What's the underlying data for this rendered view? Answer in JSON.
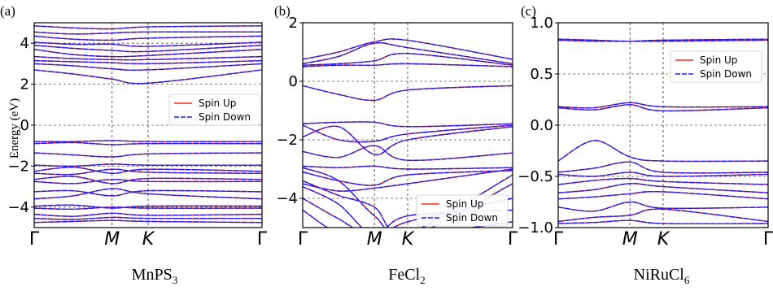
{
  "ylabel": "Energy (eV)",
  "legend_up": "Spin Up",
  "legend_down": "Spin Down",
  "colors": {
    "up": "#ff2a1a",
    "down": "#1a1aff",
    "grid": "#555555"
  },
  "chart_data": [
    {
      "type": "line",
      "panel_label": "(a)",
      "material": "MnPS",
      "material_sub": "3",
      "x_ticks": [
        "Γ",
        "M",
        "K",
        "Γ"
      ],
      "ylim": [
        -5,
        5
      ],
      "y_ticks": [
        -4,
        -2,
        0,
        2,
        4
      ],
      "hgrid": [
        -4,
        -2,
        0,
        2,
        4
      ],
      "legend_position": "center-right",
      "grid": true,
      "bands": [
        [
          [
            0,
            -4.75
          ],
          [
            0.5,
            -4.7
          ],
          [
            1,
            -4.65
          ],
          [
            1.5,
            -4.7
          ],
          [
            2,
            -4.75
          ]
        ],
        [
          [
            0,
            -4.55
          ],
          [
            0.5,
            -4.6
          ],
          [
            1,
            -4.5
          ],
          [
            1.5,
            -4.55
          ],
          [
            2,
            -4.55
          ]
        ],
        [
          [
            0,
            -4.35
          ],
          [
            0.5,
            -4.45
          ],
          [
            1,
            -4.3
          ],
          [
            1.5,
            -4.4
          ],
          [
            2,
            -4.35
          ]
        ],
        [
          [
            0,
            -4.05
          ],
          [
            0.5,
            -4.1
          ],
          [
            1,
            -4.0
          ],
          [
            1.5,
            -4.05
          ],
          [
            2,
            -4.05
          ]
        ],
        [
          [
            0,
            -3.95
          ],
          [
            0.5,
            -3.9
          ],
          [
            1,
            -4.05
          ],
          [
            1.5,
            -3.95
          ],
          [
            2,
            -3.95
          ]
        ],
        [
          [
            0,
            -3.6
          ],
          [
            0.5,
            -3.45
          ],
          [
            1,
            -3.1
          ],
          [
            1.5,
            -3.35
          ],
          [
            2,
            -3.6
          ]
        ],
        [
          [
            0,
            -3.25
          ],
          [
            0.5,
            -3.2
          ],
          [
            1,
            -3.45
          ],
          [
            1.5,
            -3.2
          ],
          [
            2,
            -3.25
          ]
        ],
        [
          [
            0,
            -2.75
          ],
          [
            0.5,
            -2.85
          ],
          [
            1,
            -2.65
          ],
          [
            1.5,
            -2.75
          ],
          [
            2,
            -2.75
          ]
        ],
        [
          [
            0,
            -2.65
          ],
          [
            0.5,
            -2.5
          ],
          [
            1,
            -2.85
          ],
          [
            1.5,
            -2.6
          ],
          [
            2,
            -2.65
          ]
        ],
        [
          [
            0,
            -2.35
          ],
          [
            0.5,
            -2.4
          ],
          [
            1,
            -2.15
          ],
          [
            1.5,
            -2.3
          ],
          [
            2,
            -2.35
          ]
        ],
        [
          [
            0,
            -2.25
          ],
          [
            0.5,
            -2.05
          ],
          [
            1,
            -2.35
          ],
          [
            1.5,
            -2.15
          ],
          [
            2,
            -2.25
          ]
        ],
        [
          [
            0,
            -1.95
          ],
          [
            0.5,
            -2.0
          ],
          [
            1,
            -1.9
          ],
          [
            1.5,
            -1.95
          ],
          [
            2,
            -1.95
          ]
        ],
        [
          [
            0,
            -1.35
          ],
          [
            0.5,
            -1.45
          ],
          [
            1,
            -1.55
          ],
          [
            1.5,
            -1.4
          ],
          [
            2,
            -1.35
          ]
        ],
        [
          [
            0,
            -0.9
          ],
          [
            0.5,
            -0.85
          ],
          [
            1,
            -0.95
          ],
          [
            1.5,
            -0.9
          ],
          [
            2,
            -0.9
          ]
        ],
        [
          [
            0,
            -0.8
          ],
          [
            0.5,
            -0.8
          ],
          [
            1,
            -0.75
          ],
          [
            1.5,
            -0.8
          ],
          [
            2,
            -0.8
          ]
        ],
        [
          [
            0,
            2.7
          ],
          [
            0.5,
            2.5
          ],
          [
            1,
            2.25
          ],
          [
            1.5,
            2.05
          ],
          [
            2,
            2.7
          ]
        ],
        [
          [
            0,
            3.0
          ],
          [
            0.5,
            2.9
          ],
          [
            1,
            2.75
          ],
          [
            1.5,
            2.7
          ],
          [
            2,
            3.0
          ]
        ],
        [
          [
            0,
            3.15
          ],
          [
            0.5,
            3.1
          ],
          [
            1,
            3.05
          ],
          [
            1.5,
            3.0
          ],
          [
            2,
            3.15
          ]
        ],
        [
          [
            0,
            3.35
          ],
          [
            0.5,
            3.25
          ],
          [
            1,
            3.2
          ],
          [
            1.5,
            3.2
          ],
          [
            2,
            3.35
          ]
        ],
        [
          [
            0,
            3.7
          ],
          [
            0.5,
            3.45
          ],
          [
            1,
            3.35
          ],
          [
            1.5,
            3.4
          ],
          [
            2,
            3.7
          ]
        ],
        [
          [
            0,
            3.9
          ],
          [
            0.5,
            3.75
          ],
          [
            1,
            3.65
          ],
          [
            1.5,
            3.6
          ],
          [
            2,
            3.9
          ]
        ],
        [
          [
            0,
            4.05
          ],
          [
            0.5,
            3.95
          ],
          [
            1,
            3.95
          ],
          [
            1.5,
            3.85
          ],
          [
            2,
            4.05
          ]
        ],
        [
          [
            0,
            4.35
          ],
          [
            0.5,
            4.2
          ],
          [
            1,
            4.15
          ],
          [
            1.5,
            4.25
          ],
          [
            2,
            4.35
          ]
        ],
        [
          [
            0,
            4.55
          ],
          [
            0.5,
            4.45
          ],
          [
            1,
            4.5
          ],
          [
            1.5,
            4.55
          ],
          [
            2,
            4.55
          ]
        ],
        [
          [
            0,
            4.85
          ],
          [
            0.5,
            4.75
          ],
          [
            1,
            4.7
          ],
          [
            1.5,
            4.8
          ],
          [
            2,
            4.85
          ]
        ]
      ]
    },
    {
      "type": "line",
      "panel_label": "(b)",
      "material": "FeCl",
      "material_sub": "2",
      "x_ticks": [
        "Γ",
        "M",
        "K",
        "Γ"
      ],
      "ylim": [
        -5,
        2
      ],
      "y_ticks": [
        -4,
        -2,
        0,
        2
      ],
      "hgrid": [
        -4,
        -2,
        0
      ],
      "legend_position": "lower-right",
      "grid": true,
      "bands": [
        [
          [
            0,
            0.75
          ],
          [
            0.5,
            1.0
          ],
          [
            1,
            1.35
          ],
          [
            1.5,
            1.4
          ],
          [
            2,
            0.75
          ]
        ],
        [
          [
            0,
            0.6
          ],
          [
            0.5,
            0.85
          ],
          [
            1,
            1.3
          ],
          [
            1.5,
            1.15
          ],
          [
            2,
            0.6
          ]
        ],
        [
          [
            0,
            0.55
          ],
          [
            0.5,
            0.6
          ],
          [
            1,
            0.7
          ],
          [
            1.5,
            0.95
          ],
          [
            2,
            0.55
          ]
        ],
        [
          [
            0,
            0.5
          ],
          [
            0.5,
            0.55
          ],
          [
            1,
            0.55
          ],
          [
            1.5,
            0.6
          ],
          [
            2,
            0.5
          ]
        ],
        [
          [
            0,
            -0.15
          ],
          [
            0.5,
            -0.45
          ],
          [
            1,
            -0.65
          ],
          [
            1.5,
            -0.3
          ],
          [
            2,
            -0.15
          ]
        ],
        [
          [
            0,
            -1.45
          ],
          [
            0.5,
            -1.4
          ],
          [
            1,
            -1.4
          ],
          [
            1.5,
            -1.55
          ],
          [
            2,
            -1.45
          ]
        ],
        [
          [
            0,
            -1.5
          ],
          [
            0.5,
            -2.0
          ],
          [
            1,
            -2.05
          ],
          [
            1.5,
            -1.8
          ],
          [
            2,
            -1.5
          ]
        ],
        [
          [
            0,
            -1.9
          ],
          [
            0.5,
            -1.55
          ],
          [
            1,
            -2.5
          ],
          [
            1.5,
            -2.0
          ],
          [
            2,
            -1.55
          ]
        ],
        [
          [
            0,
            -2.4
          ],
          [
            0.5,
            -2.6
          ],
          [
            1,
            -2.2
          ],
          [
            1.5,
            -2.7
          ],
          [
            2,
            -2.45
          ]
        ],
        [
          [
            0,
            -2.9
          ],
          [
            0.5,
            -2.95
          ],
          [
            1,
            -2.9
          ],
          [
            1.5,
            -3.0
          ],
          [
            2,
            -2.95
          ]
        ],
        [
          [
            0,
            -3.1
          ],
          [
            0.5,
            -3.4
          ],
          [
            1,
            -3.55
          ],
          [
            1.5,
            -3.2
          ],
          [
            2,
            -3.05
          ]
        ],
        [
          [
            0,
            -3.5
          ],
          [
            0.5,
            -3.75
          ],
          [
            1,
            -3.65
          ],
          [
            1.5,
            -3.5
          ],
          [
            2,
            -3.0
          ]
        ],
        [
          [
            0,
            -2.95
          ],
          [
            0.5,
            -3.4
          ],
          [
            1,
            -4.6
          ],
          [
            1.5,
            -5.2
          ],
          [
            2,
            -3.2
          ]
        ],
        [
          [
            0,
            -3.4
          ],
          [
            0.5,
            -3.9
          ],
          [
            1,
            -4.3
          ],
          [
            1.5,
            -5.3
          ],
          [
            2,
            -3.5
          ]
        ],
        [
          [
            0,
            -3.6
          ],
          [
            0.5,
            -4.2
          ],
          [
            1,
            -5.3
          ],
          [
            1.5,
            -4.8
          ],
          [
            2,
            -4.0
          ]
        ],
        [
          [
            0,
            -4.0
          ],
          [
            0.5,
            -4.7
          ],
          [
            1,
            -5.3
          ],
          [
            1.5,
            -4.6
          ],
          [
            2,
            -4.4
          ]
        ],
        [
          [
            0,
            -4.4
          ],
          [
            0.5,
            -5.2
          ],
          [
            1,
            -5.3
          ],
          [
            1.5,
            -5.3
          ],
          [
            2,
            -4.8
          ]
        ]
      ]
    },
    {
      "type": "line",
      "panel_label": "(c)",
      "material": "NiRuCl",
      "material_sub": "6",
      "x_ticks": [
        "Γ",
        "M",
        "K",
        "Γ"
      ],
      "ylim": [
        -1.0,
        1.0
      ],
      "y_ticks": [
        "−1.0",
        "−0.5",
        "0.0",
        "0.5",
        "1.0"
      ],
      "y_tick_values": [
        -1.0,
        -0.5,
        0.0,
        0.5,
        1.0
      ],
      "hgrid": [
        -0.5,
        0.0,
        0.5
      ],
      "legend_position": "upper-right",
      "grid": true,
      "bands": [
        [
          [
            0,
            0.84
          ],
          [
            0.5,
            0.83
          ],
          [
            1,
            0.82
          ],
          [
            1.5,
            0.83
          ],
          [
            2,
            0.84
          ]
        ],
        [
          [
            0,
            0.83
          ],
          [
            0.5,
            0.82
          ],
          [
            1,
            0.82
          ],
          [
            1.5,
            0.82
          ],
          [
            2,
            0.83
          ]
        ],
        [
          [
            0,
            0.18
          ],
          [
            0.5,
            0.17
          ],
          [
            1,
            0.22
          ],
          [
            1.5,
            0.18
          ],
          [
            2,
            0.18
          ]
        ],
        [
          [
            0,
            0.17
          ],
          [
            0.5,
            0.15
          ],
          [
            1,
            0.2
          ],
          [
            1.5,
            0.14
          ],
          [
            2,
            0.17
          ]
        ],
        [
          [
            0,
            -0.35
          ],
          [
            0.5,
            -0.15
          ],
          [
            1,
            -0.31
          ],
          [
            1.5,
            -0.35
          ],
          [
            2,
            -0.35
          ]
        ],
        [
          [
            0,
            -0.46
          ],
          [
            0.5,
            -0.42
          ],
          [
            1,
            -0.36
          ],
          [
            1.5,
            -0.46
          ],
          [
            2,
            -0.46
          ]
        ],
        [
          [
            0,
            -0.48
          ],
          [
            0.5,
            -0.5
          ],
          [
            1,
            -0.46
          ],
          [
            1.5,
            -0.5
          ],
          [
            2,
            -0.48
          ]
        ],
        [
          [
            0,
            -0.58
          ],
          [
            0.5,
            -0.54
          ],
          [
            1,
            -0.52
          ],
          [
            1.5,
            -0.55
          ],
          [
            2,
            -0.58
          ]
        ],
        [
          [
            0,
            -0.66
          ],
          [
            0.5,
            -0.63
          ],
          [
            1,
            -0.57
          ],
          [
            1.5,
            -0.6
          ],
          [
            2,
            -0.66
          ]
        ],
        [
          [
            0,
            -0.72
          ],
          [
            0.5,
            -0.7
          ],
          [
            1,
            -0.67
          ],
          [
            1.5,
            -0.65
          ],
          [
            2,
            -0.72
          ]
        ],
        [
          [
            0,
            -0.8
          ],
          [
            0.5,
            -0.84
          ],
          [
            1,
            -0.75
          ],
          [
            1.5,
            -0.81
          ],
          [
            2,
            -0.8
          ]
        ],
        [
          [
            0,
            -0.94
          ],
          [
            0.5,
            -0.9
          ],
          [
            1,
            -0.88
          ],
          [
            1.5,
            -0.82
          ],
          [
            2,
            -0.94
          ]
        ],
        [
          [
            0,
            -0.96
          ],
          [
            0.5,
            -0.95
          ],
          [
            1,
            -0.93
          ],
          [
            1.5,
            -0.96
          ],
          [
            2,
            -0.96
          ]
        ]
      ]
    }
  ]
}
